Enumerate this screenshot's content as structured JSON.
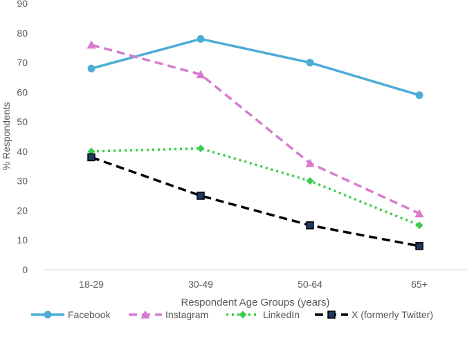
{
  "chart_data": {
    "type": "line",
    "xlabel": "Respondent Age Groups (years)",
    "ylabel": "% Respondents",
    "categories": [
      "18-29",
      "30-49",
      "50-64",
      "65+"
    ],
    "ylim": [
      0,
      90
    ],
    "yticks": [
      0,
      10,
      20,
      30,
      40,
      50,
      60,
      70,
      80,
      90
    ],
    "grid": false,
    "legend_position": "bottom",
    "series": [
      {
        "name": "Facebook",
        "values": [
          68,
          78,
          70,
          59
        ],
        "color": "#4BACD6",
        "dash": "solid",
        "marker": "circle"
      },
      {
        "name": "Instagram",
        "values": [
          76,
          66,
          36,
          19
        ],
        "color": "#D87BCF",
        "dash": "dash",
        "marker": "triangle"
      },
      {
        "name": "LinkedIn",
        "values": [
          40,
          41,
          30,
          15
        ],
        "color": "#3CCB4A",
        "dash": "dot",
        "marker": "diamond"
      },
      {
        "name": "X (formerly Twitter)",
        "values": [
          38,
          25,
          15,
          8
        ],
        "color": "#000000",
        "dash": "dash",
        "marker": "square",
        "marker_fill": "#1F3864"
      }
    ]
  }
}
